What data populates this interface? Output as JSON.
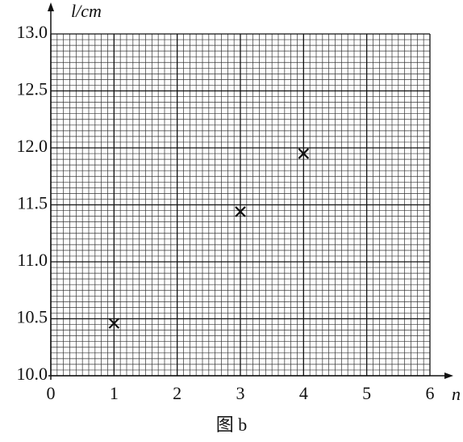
{
  "chart_data": {
    "type": "scatter",
    "caption": "图 b",
    "xlabel": "n",
    "ylabel": "l/cm",
    "x": [
      1,
      3,
      4
    ],
    "values": [
      10.46,
      11.44,
      11.95
    ],
    "color": "#111111",
    "xlim": [
      0,
      6
    ],
    "xticks": [
      0,
      1,
      2,
      3,
      4,
      5,
      6
    ],
    "ylim": [
      10,
      13
    ],
    "yticks": [
      {
        "value": 10,
        "label": "10.0"
      },
      10.5,
      {
        "value": 11,
        "label": "11.0"
      },
      11.5,
      {
        "value": 12,
        "label": "12.0"
      },
      12.5,
      {
        "value": 13,
        "label": "13.0"
      }
    ],
    "grid": true
  }
}
